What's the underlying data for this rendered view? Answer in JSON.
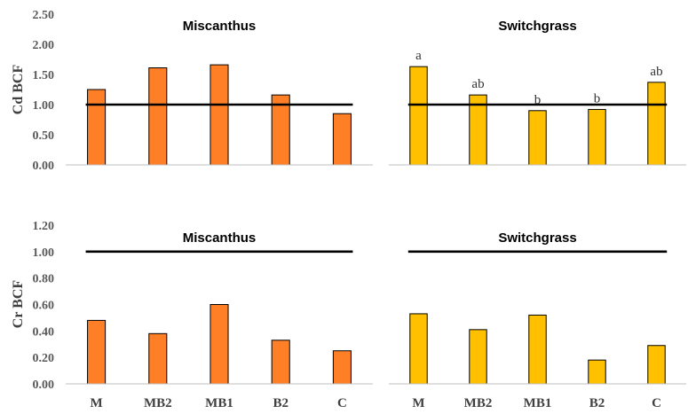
{
  "chart_data": [
    {
      "type": "bar",
      "title": "Miscanthus",
      "ylabel": "Cd BCF",
      "xlabel": "",
      "categories": [
        "M",
        "MB2",
        "MB1",
        "B2",
        "C"
      ],
      "values": [
        1.25,
        1.61,
        1.66,
        1.16,
        0.85
      ],
      "ylim": [
        0,
        2.5
      ],
      "yticks": [
        "0.00",
        "0.50",
        "1.00",
        "1.50",
        "2.00",
        "2.50"
      ],
      "reference_line": 1.0,
      "annotations": [],
      "bar_color": "#FF7F27",
      "show_tick_labels": false
    },
    {
      "type": "bar",
      "title": "Switchgrass",
      "ylabel": "",
      "xlabel": "",
      "categories": [
        "M",
        "MB2",
        "MB1",
        "B2",
        "C"
      ],
      "values": [
        1.63,
        1.16,
        0.9,
        0.92,
        1.37
      ],
      "ylim": [
        0,
        2.5
      ],
      "yticks": [],
      "reference_line": 1.0,
      "annotations": [
        "a",
        "ab",
        "b",
        "b",
        "ab"
      ],
      "bar_color": "#FFC000",
      "show_tick_labels": false
    },
    {
      "type": "bar",
      "title": "Miscanthus",
      "ylabel": "Cr BCF",
      "xlabel": "",
      "categories": [
        "M",
        "MB2",
        "MB1",
        "B2",
        "C"
      ],
      "values": [
        0.48,
        0.38,
        0.6,
        0.33,
        0.25
      ],
      "ylim": [
        0,
        1.2
      ],
      "yticks": [
        "0.00",
        "0.20",
        "0.40",
        "0.60",
        "0.80",
        "1.00",
        "1.20"
      ],
      "reference_line": 1.0,
      "annotations": [],
      "bar_color": "#FF7F27",
      "show_tick_labels": true
    },
    {
      "type": "bar",
      "title": "Switchgrass",
      "ylabel": "",
      "xlabel": "",
      "categories": [
        "M",
        "MB2",
        "MB1",
        "B2",
        "C"
      ],
      "values": [
        0.53,
        0.41,
        0.52,
        0.18,
        0.29
      ],
      "ylim": [
        0,
        1.2
      ],
      "yticks": [],
      "reference_line": 1.0,
      "annotations": [],
      "bar_color": "#FFC000",
      "show_tick_labels": true
    }
  ]
}
